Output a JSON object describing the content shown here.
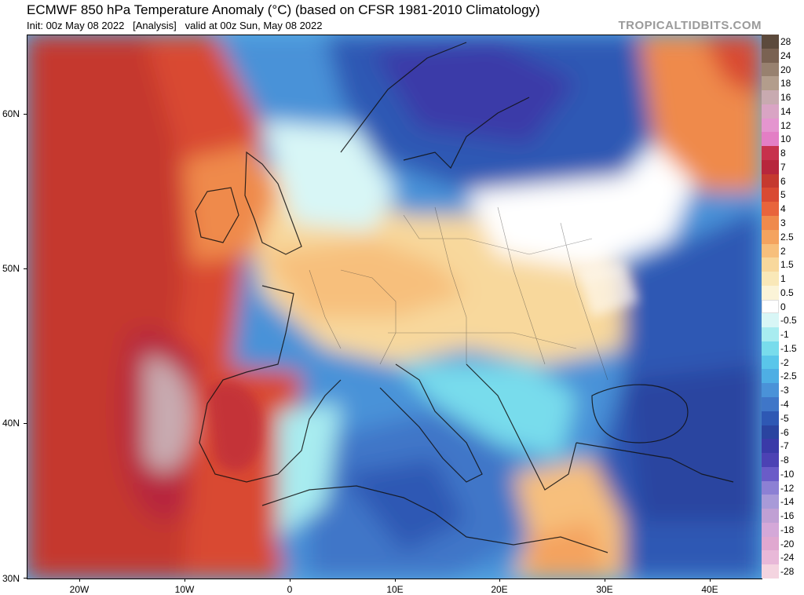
{
  "header": {
    "title": "ECMWF 850 hPa Temperature Anomaly (°C) (based on CFSR 1981-2010 Climatology)",
    "subtitle": "Init: 00z May 08 2022   [Analysis]   valid at 00z Sun, May 08 2022",
    "credit": "TROPICALTIDBITS.COM"
  },
  "map": {
    "lat_ticks": [
      "60N",
      "50N",
      "40N",
      "30N"
    ],
    "lon_ticks": [
      "20W",
      "10W",
      "0",
      "10E",
      "20E",
      "30E",
      "40E"
    ],
    "lat_range": [
      30,
      65
    ],
    "lon_range": [
      -25,
      45
    ]
  },
  "colorbar": {
    "levels": [
      "28",
      "24",
      "20",
      "18",
      "16",
      "14",
      "12",
      "10",
      "8",
      "7",
      "6",
      "5",
      "4",
      "3",
      "2.5",
      "2",
      "1.5",
      "1",
      "0.5",
      "0",
      "-0.5",
      "-1",
      "-1.5",
      "-2",
      "-2.5",
      "-3",
      "-4",
      "-5",
      "-6",
      "-7",
      "-8",
      "-10",
      "-12",
      "-14",
      "-16",
      "-18",
      "-20",
      "-24",
      "-28"
    ],
    "colors": [
      "#5c4a3c",
      "#7a6252",
      "#98816f",
      "#b39d8c",
      "#c8aab0",
      "#d9a4c4",
      "#e495cf",
      "#e37ec5",
      "#c7314c",
      "#b7263c",
      "#c5392f",
      "#d94a33",
      "#e8643c",
      "#ef8a4c",
      "#f4a35f",
      "#f7bf7c",
      "#f8d89c",
      "#f9e8b8",
      "#fbf4d8",
      "#ffffff",
      "#d8f6f6",
      "#a8ecf0",
      "#78dcec",
      "#5ac6ea",
      "#4eaee4",
      "#4a92d8",
      "#3f76c8",
      "#2e58b4",
      "#2a44a0",
      "#3a3aa8",
      "#4c42b4",
      "#6a5cc8",
      "#8c80d4",
      "#a89ad8",
      "#c0a0d4",
      "#d4a8d8",
      "#e0a8d0",
      "#e8b8d8",
      "#f4d4e0"
    ]
  },
  "icons": {
    "coastline": "coastline-overlay",
    "graticule": "graticule-overlay"
  }
}
